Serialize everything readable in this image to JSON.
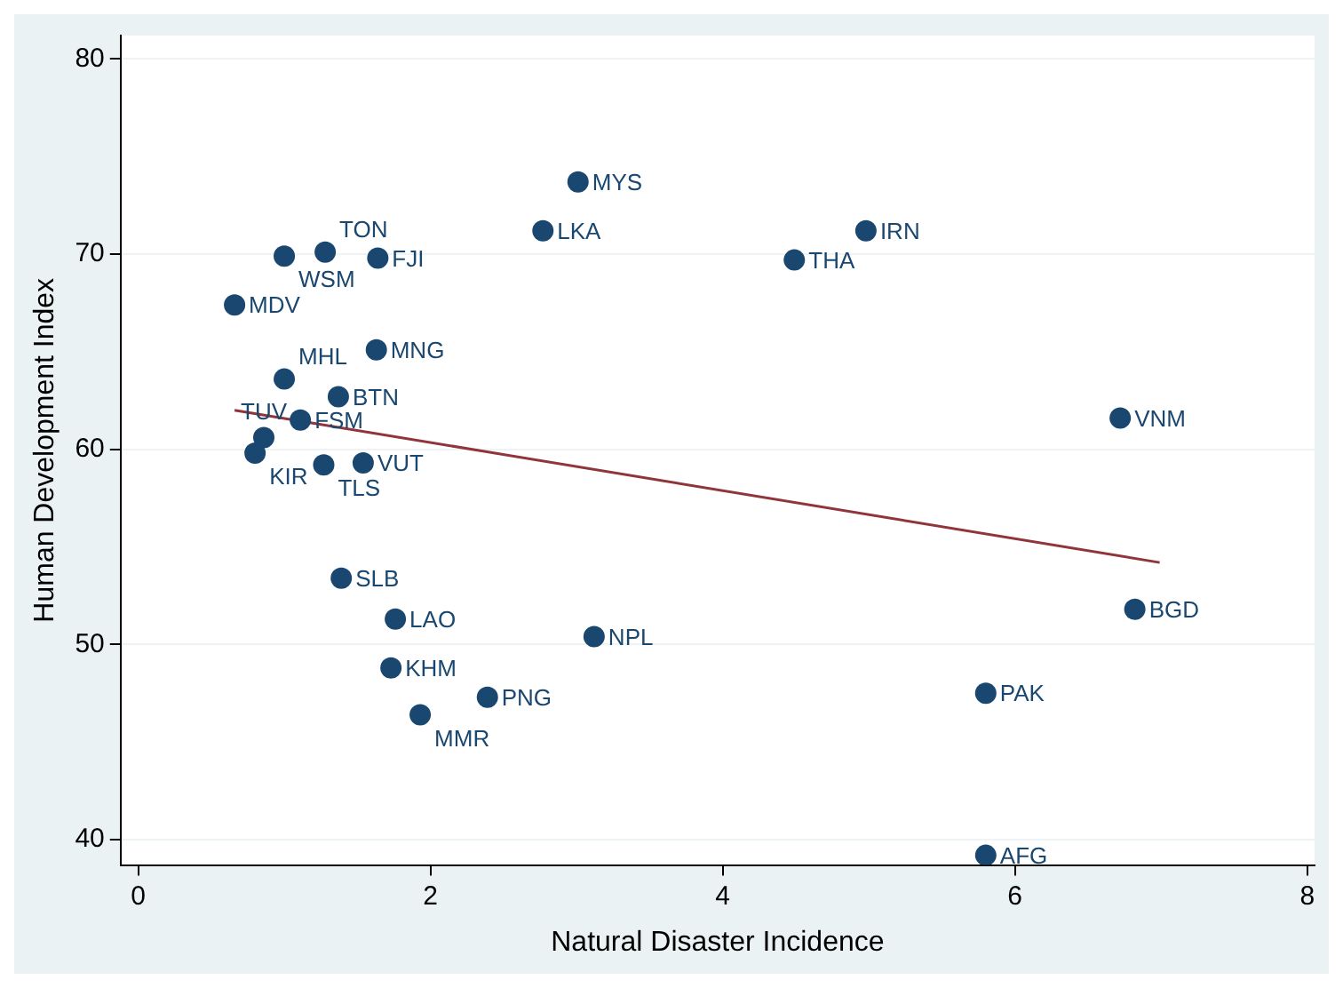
{
  "chart_data": {
    "type": "scatter",
    "xlabel": "Natural Disaster Incidence",
    "ylabel": "Human Development Index",
    "xlim": [
      -0.12,
      8.05
    ],
    "ylim": [
      38.7,
      81.2
    ],
    "xticks": [
      0,
      2,
      4,
      6,
      8
    ],
    "yticks": [
      40,
      50,
      60,
      70,
      80
    ],
    "grid": "y",
    "legend": false,
    "marker": "circle",
    "series": [
      {
        "color": "#1a476f",
        "x": [
          3.01,
          2.77,
          4.98,
          4.49,
          1.0,
          1.28,
          1.64,
          0.66,
          1.63,
          1.0,
          1.37,
          1.11,
          0.86,
          0.8,
          1.27,
          1.54,
          6.72,
          1.39,
          1.76,
          3.12,
          1.73,
          2.39,
          1.93,
          6.82,
          5.8,
          5.8
        ],
        "values": [
          73.7,
          71.2,
          71.2,
          69.7,
          69.9,
          70.1,
          69.8,
          67.4,
          65.1,
          63.6,
          62.7,
          61.5,
          60.6,
          59.8,
          59.2,
          59.3,
          61.6,
          53.4,
          51.3,
          50.4,
          48.8,
          47.3,
          46.4,
          51.8,
          47.5,
          39.2
        ],
        "value_labels": [
          "MYS",
          "LKA",
          "IRN",
          "THA",
          "WSM",
          "TON",
          "FJI",
          "MDV",
          "MNG",
          "MHL",
          "BTN",
          "FSM",
          "TUV",
          "KIR",
          "TLS",
          "VUT",
          "VNM",
          "SLB",
          "LAO",
          "NPL",
          "KHM",
          "PNG",
          "MMR",
          "BGD",
          "PAK",
          "AFG"
        ]
      },
      {
        "type": "line",
        "color": "#90353b",
        "marker": "none",
        "x": [
          0.66,
          6.99
        ],
        "values": [
          62.0,
          54.2
        ]
      }
    ]
  }
}
